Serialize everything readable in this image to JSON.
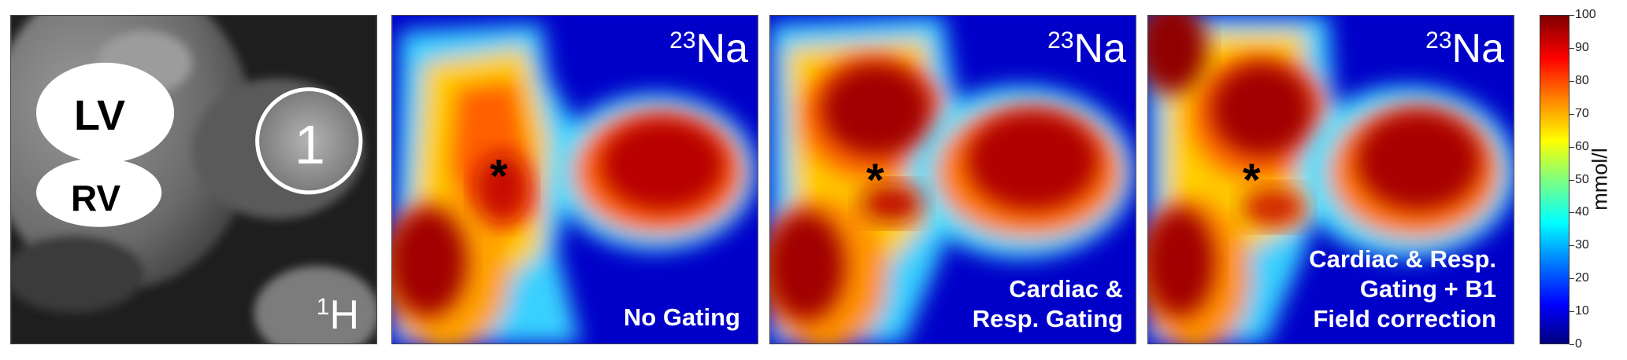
{
  "panels": [
    {
      "nucleus_mass": "1",
      "nucleus_symbol": "H",
      "ring_label": "1",
      "lv_label": "LV",
      "rv_label": "RV"
    },
    {
      "nucleus_mass": "23",
      "nucleus_symbol": "Na",
      "caption": [
        "No Gating"
      ],
      "marker": "*"
    },
    {
      "nucleus_mass": "23",
      "nucleus_symbol": "Na",
      "caption": [
        "Cardiac &",
        "Resp. Gating"
      ],
      "marker": "*"
    },
    {
      "nucleus_mass": "23",
      "nucleus_symbol": "Na",
      "caption": [
        "Cardiac & Resp.",
        "Gating + B1",
        "Field correction"
      ],
      "marker": "*"
    }
  ],
  "colorbar": {
    "ticks": [
      "0",
      "10",
      "20",
      "30",
      "40",
      "50",
      "60",
      "70",
      "80",
      "90",
      "100"
    ],
    "unit": "mmol/l",
    "min": 0,
    "max": 100,
    "colormap": "jet"
  }
}
